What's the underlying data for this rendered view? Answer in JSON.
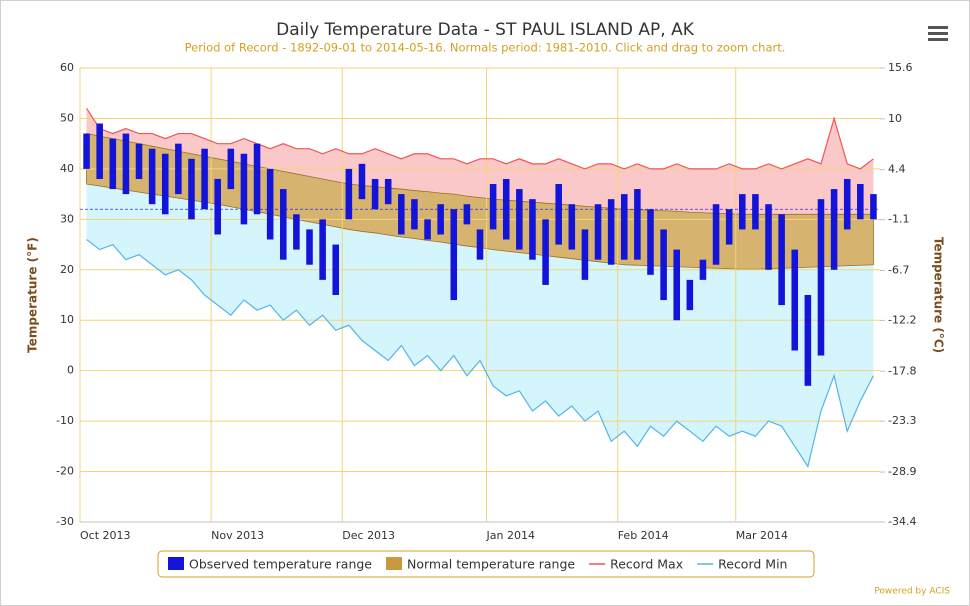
{
  "chart_data": {
    "type": "temperature_range",
    "title": "Daily Temperature Data - ST PAUL ISLAND AP, AK",
    "subtitle": "Period of Record - 1892-09-01 to 2014-05-16. Normals period: 1981-2010. Click and drag to zoom chart.",
    "y_label": "Temperature (°F)",
    "y2_label": "Temperature (°C)",
    "footer": "Powered by ACIS",
    "categories": [
      "Oct 2013",
      null,
      null,
      null,
      null,
      null,
      null,
      null,
      null,
      null,
      "Nov 2013",
      null,
      null,
      null,
      null,
      null,
      null,
      null,
      null,
      null,
      "Dec 2013",
      null,
      null,
      null,
      null,
      null,
      null,
      null,
      null,
      null,
      null,
      "Jan 2014",
      null,
      null,
      null,
      null,
      null,
      null,
      null,
      null,
      null,
      "Feb 2014",
      null,
      null,
      null,
      null,
      null,
      null,
      null,
      null,
      "Mar 2014",
      null,
      null,
      null,
      null,
      null,
      null,
      null,
      null,
      null,
      null
    ],
    "ylim": [
      -30,
      60
    ],
    "yticks": [
      -30,
      -20,
      -10,
      0,
      10,
      20,
      30,
      40,
      50,
      60
    ],
    "y2lim": [
      -34.4,
      15.6
    ],
    "y2ticks": [
      -34.4,
      -28.9,
      -23.3,
      -17.8,
      -12.2,
      -6.7,
      -1.1,
      4.4,
      10,
      15.6
    ],
    "reference_line": 32,
    "grid": true,
    "legend": "bottom",
    "series": [
      {
        "name": "Observed temperature range",
        "color": "#1414d8",
        "kind": "columnrange",
        "low": [
          40,
          38,
          36,
          35,
          38,
          33,
          31,
          35,
          30,
          32,
          27,
          36,
          29,
          31,
          26,
          22,
          24,
          21,
          18,
          15,
          30,
          34,
          32,
          33,
          27,
          28,
          26,
          27,
          14,
          29,
          22,
          28,
          26,
          24,
          22,
          17,
          25,
          24,
          18,
          22,
          21,
          22,
          22,
          19,
          14,
          10,
          12,
          18,
          21,
          25,
          28,
          28,
          20,
          13,
          4,
          -3,
          3,
          20,
          28,
          30,
          30
        ],
        "high": [
          47,
          49,
          46,
          47,
          45,
          44,
          43,
          45,
          42,
          44,
          38,
          44,
          43,
          45,
          40,
          36,
          31,
          28,
          30,
          25,
          40,
          41,
          38,
          38,
          35,
          34,
          30,
          33,
          32,
          33,
          28,
          37,
          38,
          36,
          34,
          30,
          37,
          33,
          28,
          33,
          34,
          35,
          36,
          32,
          28,
          24,
          18,
          22,
          33,
          32,
          35,
          35,
          33,
          31,
          24,
          15,
          34,
          36,
          38,
          37,
          35
        ]
      },
      {
        "name": "Normal temperature range",
        "color": "#c8993f",
        "kind": "arearange",
        "low": [
          37,
          36.6,
          36.2,
          35.8,
          35.4,
          35,
          34.6,
          34.2,
          33.8,
          33.4,
          33,
          32.5,
          32,
          31.5,
          31,
          30.5,
          30,
          29.5,
          29,
          28.5,
          28,
          27.6,
          27.3,
          26.9,
          26.5,
          26.2,
          25.8,
          25.5,
          25.1,
          24.7,
          24.4,
          24,
          23.7,
          23.4,
          23.1,
          22.8,
          22.5,
          22.2,
          21.9,
          21.6,
          21.3,
          21,
          20.9,
          20.8,
          20.7,
          20.6,
          20.5,
          20.4,
          20.3,
          20.2,
          20.1,
          20.1,
          20.2,
          20.3,
          20.4,
          20.5,
          20.6,
          20.7,
          20.8,
          20.9,
          21
        ],
        "high": [
          47,
          46.5,
          46,
          45.5,
          45,
          44.5,
          44,
          43.5,
          43,
          42.5,
          42,
          41.5,
          41,
          40.5,
          40,
          39.5,
          39,
          38.5,
          38,
          37.5,
          37,
          36.7,
          36.5,
          36.2,
          36,
          35.7,
          35.5,
          35.2,
          35,
          34.6,
          34.3,
          34,
          33.8,
          33.6,
          33.4,
          33.2,
          33,
          32.8,
          32.6,
          32.4,
          32.2,
          32,
          31.9,
          31.8,
          31.7,
          31.6,
          31.4,
          31.3,
          31.2,
          31.1,
          31,
          31,
          31,
          31,
          31,
          31,
          31,
          31,
          31,
          31,
          31
        ]
      },
      {
        "name": "Record Max",
        "color": "#f05555",
        "fill": "#fac8c8",
        "kind": "line",
        "values": [
          52,
          48,
          47,
          48,
          47,
          47,
          46,
          47,
          47,
          46,
          45,
          45,
          46,
          45,
          44,
          45,
          44,
          44,
          43,
          44,
          43,
          43,
          44,
          43,
          42,
          43,
          43,
          42,
          42,
          41,
          42,
          42,
          41,
          42,
          41,
          41,
          42,
          41,
          40,
          41,
          41,
          40,
          41,
          40,
          40,
          41,
          40,
          40,
          40,
          41,
          40,
          40,
          41,
          40,
          41,
          42,
          41,
          50,
          41,
          40,
          42
        ]
      },
      {
        "name": "Record Min",
        "color": "#55b4ea",
        "fill": "#d4f5fb",
        "kind": "line",
        "values": [
          26,
          24,
          25,
          22,
          23,
          21,
          19,
          20,
          18,
          15,
          13,
          11,
          14,
          12,
          13,
          10,
          12,
          9,
          11,
          8,
          9,
          6,
          4,
          2,
          5,
          1,
          3,
          0,
          3,
          -1,
          2,
          -3,
          -5,
          -4,
          -8,
          -6,
          -9,
          -7,
          -10,
          -8,
          -14,
          -12,
          -15,
          -11,
          -13,
          -10,
          -12,
          -14,
          -11,
          -13,
          -12,
          -13,
          -10,
          -11,
          -15,
          -19,
          -8,
          -1,
          -12,
          -6,
          -1
        ]
      }
    ]
  }
}
